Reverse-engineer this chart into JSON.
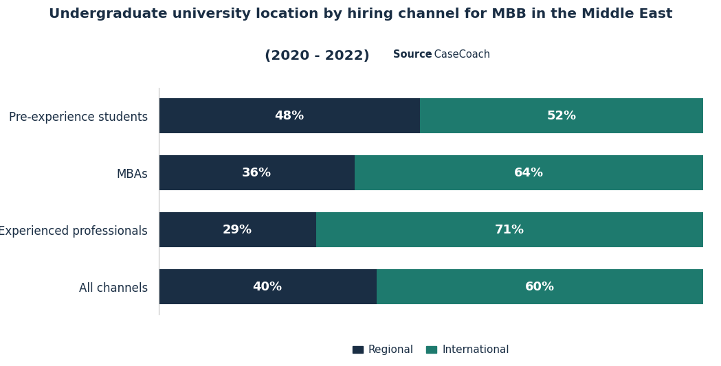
{
  "title_line1": "Undergraduate university location by hiring channel for MBB in the Middle East",
  "title_line2": "(2020 - 2022)",
  "source_label": "Source",
  "source_text": ": CaseCoach",
  "categories": [
    "Pre-experience students",
    "MBAs",
    "Experienced professionals",
    "All channels"
  ],
  "regional": [
    48,
    36,
    29,
    40
  ],
  "international": [
    52,
    64,
    71,
    60
  ],
  "color_regional": "#1a2e44",
  "color_international": "#1e7a6e",
  "bar_height": 0.62,
  "legend_regional": "Regional",
  "legend_international": "International",
  "title_fontsize": 14.5,
  "subtitle_fontsize": 14.5,
  "source_fontsize": 10.5,
  "label_fontsize": 13,
  "tick_fontsize": 12,
  "legend_fontsize": 11,
  "bg_color": "#ffffff",
  "text_color": "#ffffff",
  "axis_label_color": "#1a2e44",
  "title_color": "#1a2e44"
}
